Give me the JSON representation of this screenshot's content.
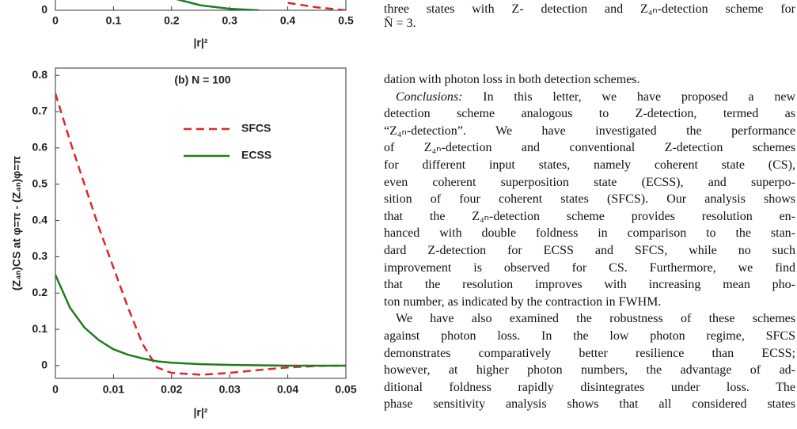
{
  "chart_data": [
    {
      "type": "line",
      "xlabel": "|r|²",
      "x": [
        0.2,
        0.25,
        0.3,
        0.35,
        0.4,
        0.45,
        0.5
      ],
      "series": [
        {
          "name": "SFCS",
          "color": "#e0262b",
          "dash": true,
          "values": [
            null,
            null,
            null,
            null,
            0.03,
            0.012,
            0
          ]
        },
        {
          "name": "ECSS",
          "color": "#1e7d1e",
          "dash": false,
          "values": [
            0.05,
            0.02,
            0.006,
            0,
            null,
            null,
            null
          ]
        }
      ],
      "xlim": [
        0,
        0.5
      ],
      "xticks": [
        0,
        0.1,
        0.2,
        0.3,
        0.4,
        0.5
      ],
      "ylim": [
        0,
        1
      ],
      "yticks": [
        0
      ]
    },
    {
      "type": "line",
      "title": "(b) N = 100",
      "xlabel": "|r|²",
      "ylabel": "(Z₄ₙ)CS at φ=π - (Z₄ₙ)φ=π",
      "x": [
        0,
        0.0025,
        0.005,
        0.0075,
        0.01,
        0.0125,
        0.015,
        0.0175,
        0.02,
        0.025,
        0.03,
        0.035,
        0.04,
        0.045,
        0.05
      ],
      "series": [
        {
          "name": "SFCS",
          "color": "#e0262b",
          "dash": true,
          "values": [
            0.75,
            0.62,
            0.5,
            0.38,
            0.27,
            0.16,
            0.06,
            -0.005,
            -0.02,
            -0.025,
            -0.02,
            -0.012,
            -0.005,
            -0.001,
            0
          ]
        },
        {
          "name": "ECSS",
          "color": "#1e7d1e",
          "dash": false,
          "values": [
            0.25,
            0.16,
            0.105,
            0.07,
            0.045,
            0.03,
            0.02,
            0.012,
            0.008,
            0.004,
            0.002,
            0.001,
            0,
            0,
            0
          ]
        }
      ],
      "xlim": [
        0,
        0.05
      ],
      "xticks": [
        0,
        0.01,
        0.02,
        0.03,
        0.04,
        0.05
      ],
      "ylim": [
        -0.035,
        0.82
      ],
      "yticks": [
        0,
        0.1,
        0.2,
        0.3,
        0.4,
        0.5,
        0.6,
        0.7,
        0.8
      ]
    }
  ],
  "caption": [
    "three states with Z- detection and Z₄ₙ-detection scheme for",
    "N̄ = 3."
  ],
  "body": [
    {
      "text": "dation with photon loss in both detection schemes.",
      "start": false,
      "last": true
    },
    {
      "lead": "Conclusions:",
      "text": " In this letter, we have proposed a new",
      "start": true
    },
    {
      "text": "detection scheme analogous to Z-detection, termed as"
    },
    {
      "text": "“Z₄ₙ-detection”. We have investigated the performance"
    },
    {
      "text": "of Z₄ₙ-detection and conventional Z-detection schemes"
    },
    {
      "text": "for different input states, namely coherent state (CS),"
    },
    {
      "text": "even coherent superposition state (ECSS), and superpo-"
    },
    {
      "text": "sition of four coherent states (SFCS). Our analysis shows"
    },
    {
      "text": "that the Z₄ₙ-detection scheme provides resolution en-"
    },
    {
      "text": "hanced with double foldness in comparison to the stan-"
    },
    {
      "text": "dard Z-detection for ECSS and SFCS, while no such"
    },
    {
      "text": "improvement is observed for CS. Furthermore, we find"
    },
    {
      "text": "that the resolution improves with increasing mean pho-"
    },
    {
      "text": "ton number, as indicated by the contraction in FWHM.",
      "last": true
    },
    {
      "text": "We have also examined the robustness of these schemes",
      "start": true
    },
    {
      "text": "against photon loss. In the low photon regime, SFCS"
    },
    {
      "text": "demonstrates comparatively better resilience than ECSS;"
    },
    {
      "text": "however, at higher photon numbers, the advantage of ad-"
    },
    {
      "text": "ditional foldness rapidly disintegrates under loss. The"
    },
    {
      "text": "phase sensitivity analysis shows that all considered states"
    }
  ]
}
